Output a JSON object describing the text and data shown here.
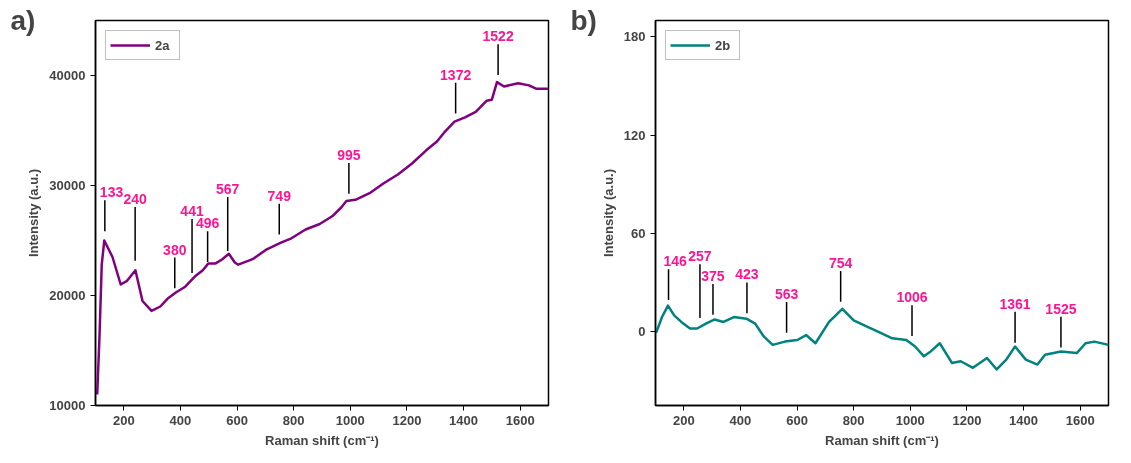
{
  "chart_data": [
    {
      "type": "line",
      "title": "a)",
      "xlabel": "Raman shift (cm⁻¹)",
      "ylabel": "Intensity (a.u.)",
      "xlim": [
        100,
        1700
      ],
      "ylim": [
        10000,
        45000
      ],
      "xticks": [
        200,
        400,
        600,
        800,
        1000,
        1200,
        1400,
        1600
      ],
      "yticks": [
        10000,
        20000,
        30000,
        40000
      ],
      "legend": "top left",
      "grid": false,
      "series": [
        {
          "name": "2a",
          "color": "#800080",
          "x": [
            106,
            114,
            122,
            131,
            160,
            189,
            210,
            241,
            266,
            298,
            329,
            354,
            385,
            417,
            454,
            479,
            498,
            523,
            548,
            571,
            592,
            604,
            655,
            705,
            755,
            792,
            842,
            892,
            936,
            968,
            986,
            1018,
            1068,
            1118,
            1168,
            1218,
            1268,
            1306,
            1331,
            1368,
            1405,
            1443,
            1481,
            1500,
            1518,
            1543,
            1593,
            1631,
            1656,
            1700
          ],
          "values": [
            11000,
            16200,
            22800,
            25000,
            23500,
            21000,
            21300,
            22300,
            19500,
            18600,
            19000,
            19700,
            20300,
            20800,
            21800,
            22300,
            22900,
            22900,
            23300,
            23800,
            23000,
            22800,
            23300,
            24200,
            24800,
            25200,
            26000,
            26500,
            27200,
            28000,
            28600,
            28700,
            29300,
            30200,
            31000,
            32000,
            33200,
            34000,
            34800,
            35800,
            36200,
            36700,
            37700,
            37800,
            39400,
            39000,
            39300,
            39100,
            38800,
            38800
          ]
        }
      ],
      "annotations": [
        {
          "text": "133",
          "x": 133,
          "y": 25500
        },
        {
          "text": "240",
          "x": 240,
          "y": 22800
        },
        {
          "text": "380",
          "x": 380,
          "y": 20300
        },
        {
          "text": "441",
          "x": 441,
          "y": 21700
        },
        {
          "text": "496",
          "x": 496,
          "y": 22700
        },
        {
          "text": "567",
          "x": 567,
          "y": 23700
        },
        {
          "text": "749",
          "x": 749,
          "y": 25200
        },
        {
          "text": "995",
          "x": 995,
          "y": 28900
        },
        {
          "text": "1372",
          "x": 1372,
          "y": 36200
        },
        {
          "text": "1522",
          "x": 1522,
          "y": 39700
        }
      ]
    },
    {
      "type": "line",
      "title": "b)",
      "xlabel": "Raman shift (cm⁻¹)",
      "ylabel": "Intensity (a.u.)",
      "xlim": [
        100,
        1700
      ],
      "ylim": [
        -45,
        190
      ],
      "xticks": [
        200,
        400,
        600,
        800,
        1000,
        1200,
        1400,
        1600
      ],
      "yticks": [
        0,
        60,
        120,
        180
      ],
      "legend": "top left",
      "grid": false,
      "series": [
        {
          "name": "2b",
          "color": "#00827f",
          "x": [
            102,
            123,
            144,
            166,
            191,
            222,
            247,
            278,
            309,
            340,
            377,
            421,
            452,
            483,
            514,
            557,
            601,
            632,
            665,
            713,
            760,
            800,
            849,
            899,
            936,
            986,
            1017,
            1048,
            1072,
            1104,
            1147,
            1178,
            1221,
            1271,
            1305,
            1339,
            1370,
            1408,
            1449,
            1476,
            1532,
            1588,
            1619,
            1650,
            1700
          ],
          "values": [
            -0.7,
            9,
            16,
            10,
            6,
            2,
            2,
            5,
            7.5,
            6,
            9,
            8,
            5,
            -3,
            -8,
            -6,
            -5,
            -2,
            -7,
            6,
            14,
            7,
            3,
            -1,
            -4,
            -5,
            -9,
            -15,
            -12,
            -7,
            -19,
            -18,
            -22,
            -16,
            -23,
            -17,
            -9,
            -17,
            -20,
            -14,
            -12,
            -13,
            -7,
            -6,
            -8
          ]
        }
      ],
      "annotations": [
        {
          "text": "146",
          "x": 146,
          "y": 17
        },
        {
          "text": "257",
          "x": 257,
          "y": 6
        },
        {
          "text": "375",
          "x": 303,
          "y": 8
        },
        {
          "text": "423",
          "x": 423,
          "y": 9
        },
        {
          "text": "563",
          "x": 563,
          "y": -3
        },
        {
          "text": "754",
          "x": 754,
          "y": 16
        },
        {
          "text": "1006",
          "x": 1006,
          "y": -5
        },
        {
          "text": "1361",
          "x": 1370,
          "y": -9
        },
        {
          "text": "1525",
          "x": 1532,
          "y": -12
        }
      ]
    }
  ]
}
